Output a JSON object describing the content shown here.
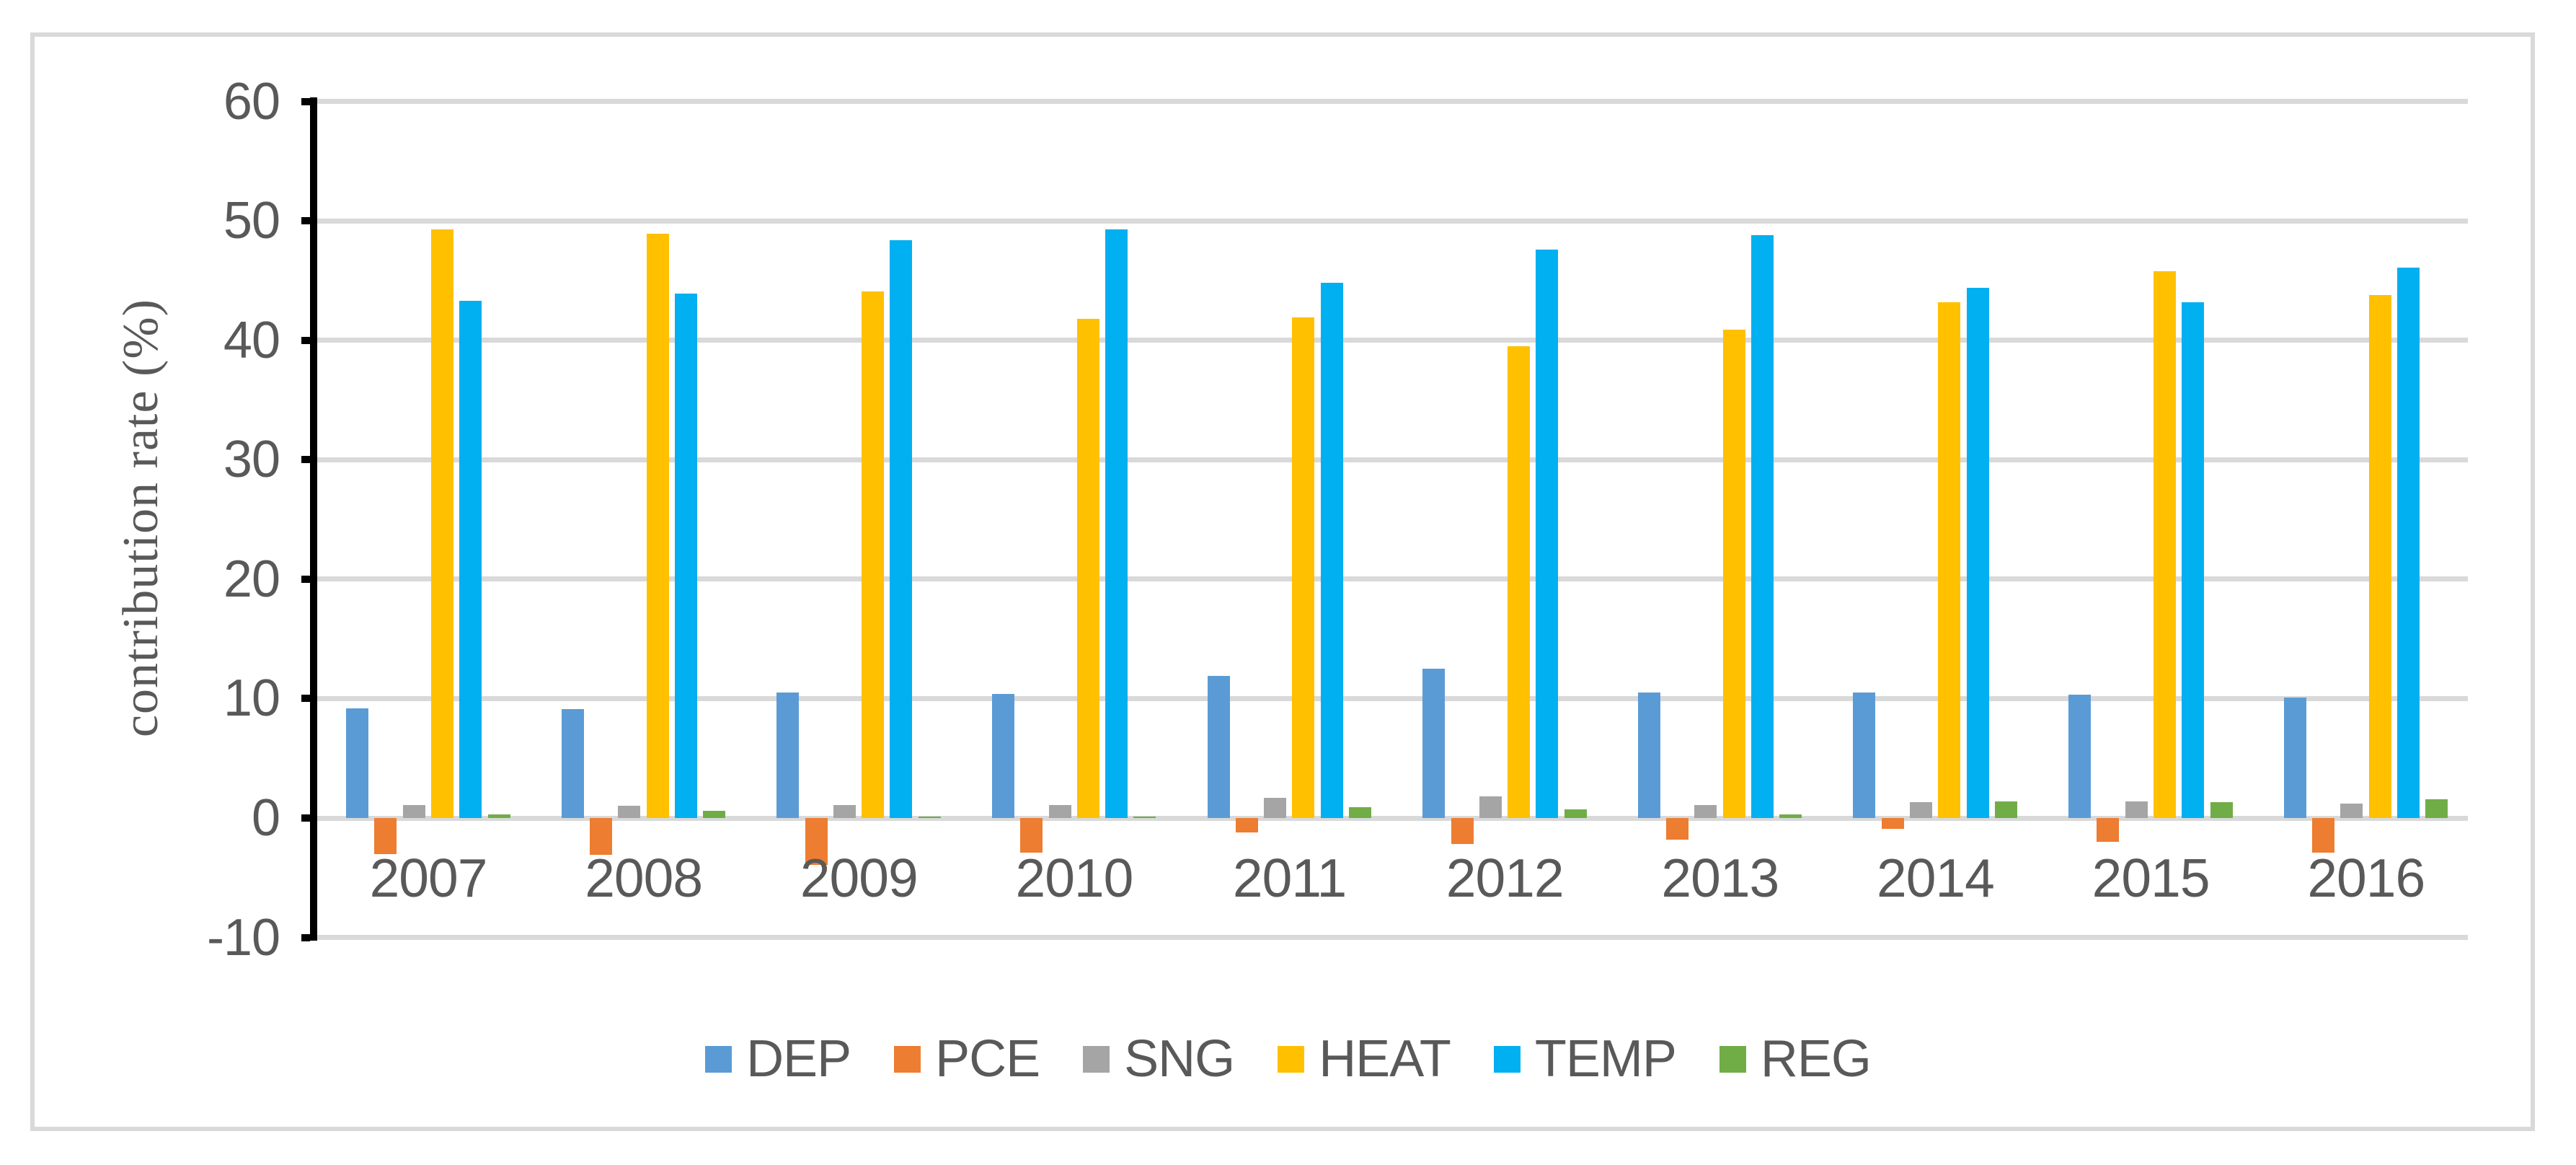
{
  "figure": {
    "background": "#FFFFFF",
    "border_color": "#D9D9D9"
  },
  "chart_data": {
    "type": "bar",
    "title": "",
    "xlabel": "",
    "ylabel": "contribution rate (%)",
    "categories": [
      "2007",
      "2008",
      "2009",
      "2010",
      "2011",
      "2012",
      "2013",
      "2014",
      "2015",
      "2016"
    ],
    "series": [
      {
        "name": "DEP",
        "color": "#5B9BD5",
        "values": [
          9.2,
          9.1,
          10.5,
          10.4,
          11.9,
          12.5,
          10.5,
          10.5,
          10.3,
          10.1
        ]
      },
      {
        "name": "PCE",
        "color": "#ED7D31",
        "values": [
          -3.0,
          -3.1,
          -3.9,
          -2.9,
          -1.2,
          -2.2,
          -1.8,
          -0.9,
          -2.0,
          -2.9
        ]
      },
      {
        "name": "SNG",
        "color": "#A5A5A5",
        "values": [
          1.1,
          1.0,
          1.1,
          1.1,
          1.7,
          1.8,
          1.1,
          1.3,
          1.4,
          1.2
        ]
      },
      {
        "name": "HEAT",
        "color": "#FFC000",
        "values": [
          49.3,
          48.9,
          44.1,
          41.8,
          41.9,
          39.5,
          40.9,
          43.2,
          45.8,
          43.8
        ]
      },
      {
        "name": "TEMP",
        "color": "#00B0F0",
        "values": [
          43.3,
          43.9,
          48.4,
          49.3,
          44.8,
          47.6,
          48.8,
          44.4,
          43.2,
          46.1
        ]
      },
      {
        "name": "REG",
        "color": "#70AD47",
        "values": [
          0.3,
          0.6,
          0.1,
          0.1,
          0.9,
          0.7,
          0.3,
          1.4,
          1.3,
          1.6
        ]
      }
    ],
    "ylim": [
      -10,
      60
    ],
    "yticks": [
      60,
      50,
      40,
      30,
      20,
      10,
      0,
      -10
    ],
    "grid": true,
    "legend_position": "bottom",
    "text_color": "#595959",
    "grid_color": "#D9D9D9",
    "axis_color": "#000000"
  }
}
